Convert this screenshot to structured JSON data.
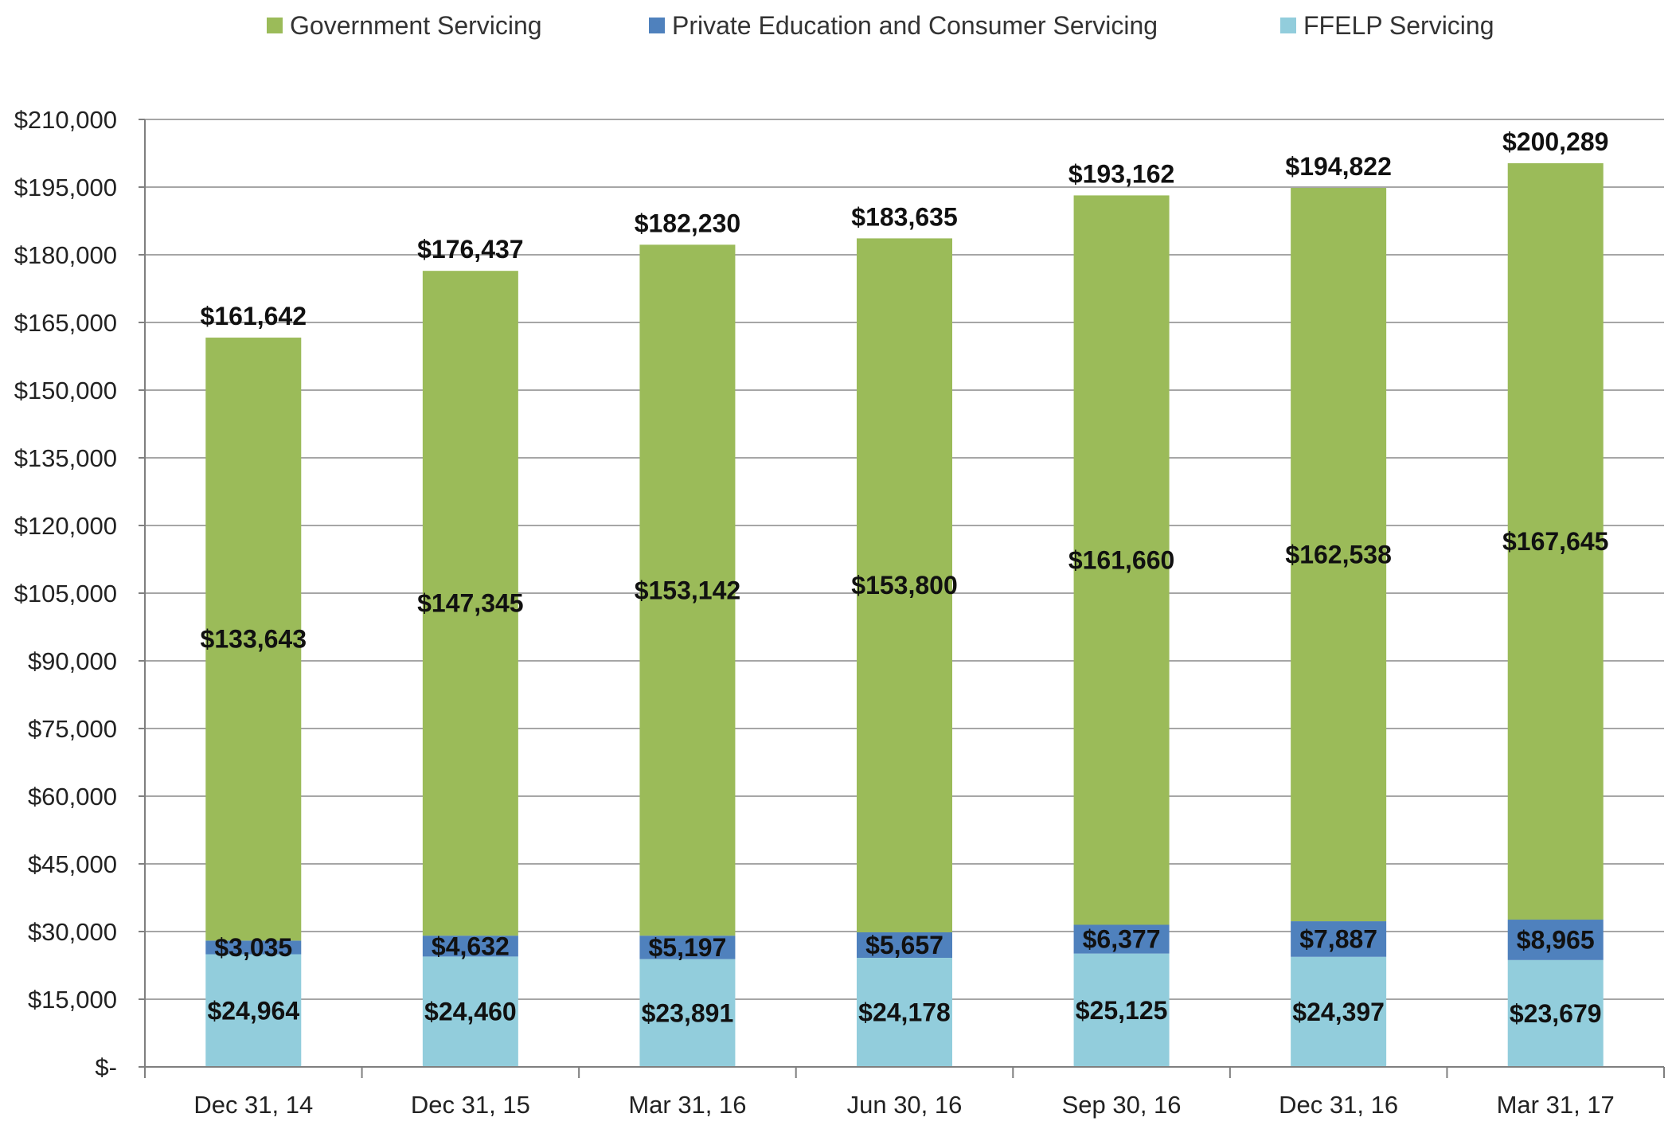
{
  "chart_data": {
    "type": "bar",
    "stacked": true,
    "categories": [
      "Dec 31, 14",
      "Dec 31, 15",
      "Mar 31, 16",
      "Jun 30, 16",
      "Sep 30, 16",
      "Dec 31, 16",
      "Mar 31, 17"
    ],
    "series": [
      {
        "name": "FFELP Servicing",
        "color": "#92cddc",
        "values": [
          24964,
          24460,
          23891,
          24178,
          25125,
          24397,
          23679
        ],
        "labels": [
          "$24,964",
          "$24,460",
          "$23,891",
          "$24,178",
          "$25,125",
          "$24,397",
          "$23,679"
        ]
      },
      {
        "name": "Private Education and Consumer Servicing",
        "color": "#4f81bd",
        "values": [
          3035,
          4632,
          5197,
          5657,
          6377,
          7887,
          8965
        ],
        "labels": [
          "$3,035",
          "$4,632",
          "$5,197",
          "$5,657",
          "$6,377",
          "$7,887",
          "$8,965"
        ]
      },
      {
        "name": "Government Servicing",
        "color": "#9bbb59",
        "values": [
          133643,
          147345,
          153142,
          153800,
          161660,
          162538,
          167645
        ],
        "labels": [
          "$133,643",
          "$147,345",
          "$153,142",
          "$153,800",
          "$161,660",
          "$162,538",
          "$167,645"
        ]
      }
    ],
    "totals": [
      161642,
      176437,
      182230,
      183635,
      193162,
      194822,
      200289
    ],
    "total_labels": [
      "$161,642",
      "$176,437",
      "$182,230",
      "$183,635",
      "$193,162",
      "$194,822",
      "$200,289"
    ],
    "legend_order": [
      "Government Servicing",
      "Private Education and Consumer Servicing",
      "FFELP Servicing"
    ],
    "ylim": [
      0,
      210000
    ],
    "yticks": [
      0,
      15000,
      30000,
      45000,
      60000,
      75000,
      90000,
      105000,
      120000,
      135000,
      150000,
      165000,
      180000,
      195000,
      210000
    ],
    "ytick_labels": [
      "$-",
      "$15,000",
      "$30,000",
      "$45,000",
      "$60,000",
      "$75,000",
      "$90,000",
      "$105,000",
      "$120,000",
      "$135,000",
      "$150,000",
      "$165,000",
      "$180,000",
      "$195,000",
      "$210,000"
    ],
    "grid": true,
    "legend_position": "top",
    "title": "",
    "xlabel": "",
    "ylabel": ""
  }
}
